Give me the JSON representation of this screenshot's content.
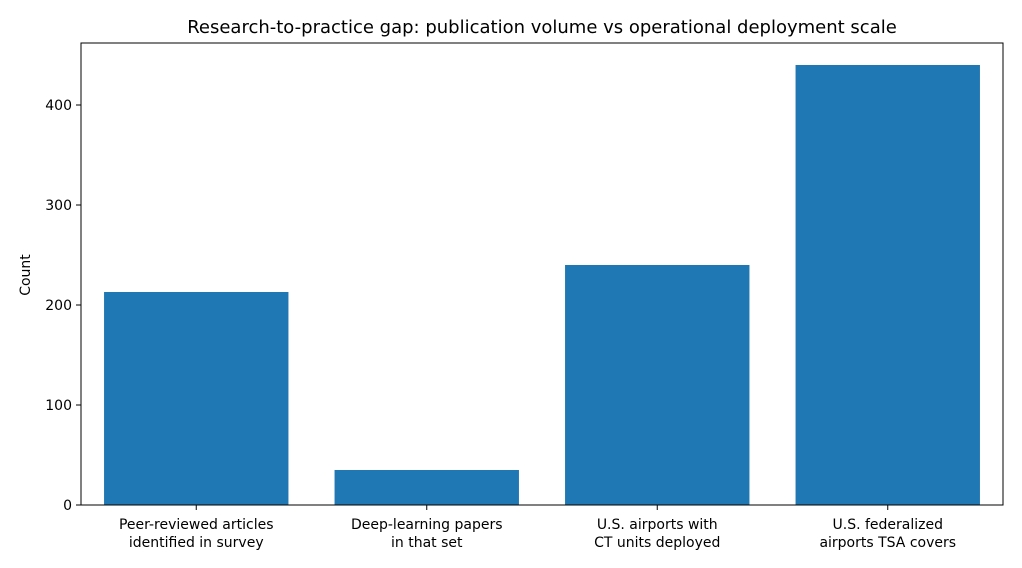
{
  "chart_data": {
    "type": "bar",
    "title": "Research-to-practice gap: publication volume vs operational deployment scale",
    "xlabel": "",
    "ylabel": "Count",
    "categories": [
      [
        "Peer-reviewed articles",
        "identified in survey"
      ],
      [
        "Deep-learning papers",
        "in that set"
      ],
      [
        "U.S. airports with",
        "CT units deployed"
      ],
      [
        "U.S. federalized",
        "airports TSA covers"
      ]
    ],
    "values": [
      213,
      35,
      240,
      440
    ],
    "ylim": [
      0,
      462
    ],
    "yticks": [
      0,
      100,
      200,
      300,
      400
    ],
    "bar_color": "#1f77b4",
    "grid": false,
    "legend": "none"
  }
}
